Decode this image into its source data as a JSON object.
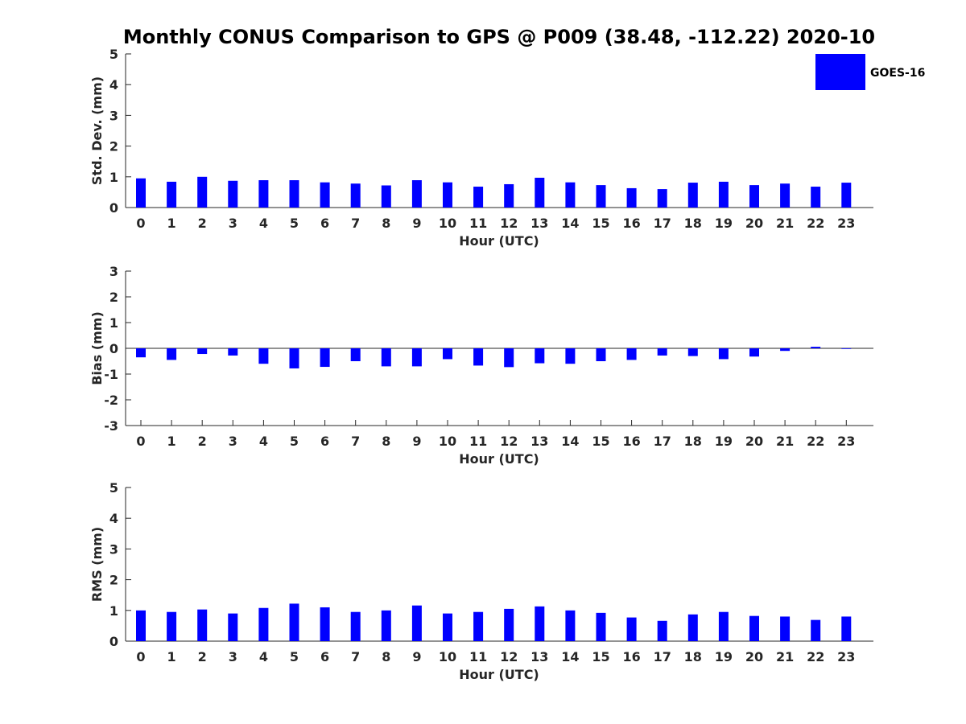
{
  "chart_data": {
    "title": "Monthly CONUS Comparison to GPS @ P009 (38.48, -112.22) 2020-10",
    "legend": {
      "label": "GOES-16",
      "color": "#0000ff",
      "placement": "top-right"
    },
    "panels": [
      {
        "type": "bar",
        "name": "std-dev",
        "ylabel": "Std. Dev. (mm)",
        "xlabel": "Hour (UTC)",
        "ylim": [
          0,
          5
        ],
        "yticks": [
          0,
          1,
          2,
          3,
          4,
          5
        ],
        "categories": [
          "0",
          "1",
          "2",
          "3",
          "4",
          "5",
          "6",
          "7",
          "8",
          "9",
          "10",
          "11",
          "12",
          "13",
          "14",
          "15",
          "16",
          "17",
          "18",
          "19",
          "20",
          "21",
          "22",
          "23"
        ],
        "values": [
          0.95,
          0.84,
          1.0,
          0.87,
          0.89,
          0.89,
          0.82,
          0.78,
          0.72,
          0.89,
          0.82,
          0.68,
          0.76,
          0.97,
          0.82,
          0.73,
          0.63,
          0.6,
          0.81,
          0.84,
          0.73,
          0.78,
          0.68,
          0.81
        ]
      },
      {
        "type": "bar",
        "name": "bias",
        "ylabel": "Bias (mm)",
        "xlabel": "Hour (UTC)",
        "ylim": [
          -3,
          3
        ],
        "yticks": [
          -3,
          -2,
          -1,
          0,
          1,
          2,
          3
        ],
        "categories": [
          "0",
          "1",
          "2",
          "3",
          "4",
          "5",
          "6",
          "7",
          "8",
          "9",
          "10",
          "11",
          "12",
          "13",
          "14",
          "15",
          "16",
          "17",
          "18",
          "19",
          "20",
          "21",
          "22",
          "23"
        ],
        "values": [
          -0.35,
          -0.45,
          -0.22,
          -0.28,
          -0.6,
          -0.78,
          -0.72,
          -0.5,
          -0.7,
          -0.7,
          -0.42,
          -0.67,
          -0.73,
          -0.58,
          -0.6,
          -0.5,
          -0.45,
          -0.28,
          -0.3,
          -0.42,
          -0.32,
          -0.1,
          0.06,
          -0.02
        ]
      },
      {
        "type": "bar",
        "name": "rms",
        "ylabel": "RMS (mm)",
        "xlabel": "Hour (UTC)",
        "ylim": [
          0,
          5
        ],
        "yticks": [
          0,
          1,
          2,
          3,
          4,
          5
        ],
        "categories": [
          "0",
          "1",
          "2",
          "3",
          "4",
          "5",
          "6",
          "7",
          "8",
          "9",
          "10",
          "11",
          "12",
          "13",
          "14",
          "15",
          "16",
          "17",
          "18",
          "19",
          "20",
          "21",
          "22",
          "23"
        ],
        "values": [
          1.0,
          0.95,
          1.03,
          0.9,
          1.08,
          1.22,
          1.1,
          0.95,
          1.0,
          1.16,
          0.9,
          0.95,
          1.05,
          1.13,
          1.0,
          0.92,
          0.77,
          0.66,
          0.87,
          0.95,
          0.82,
          0.8,
          0.69,
          0.8
        ]
      }
    ]
  }
}
